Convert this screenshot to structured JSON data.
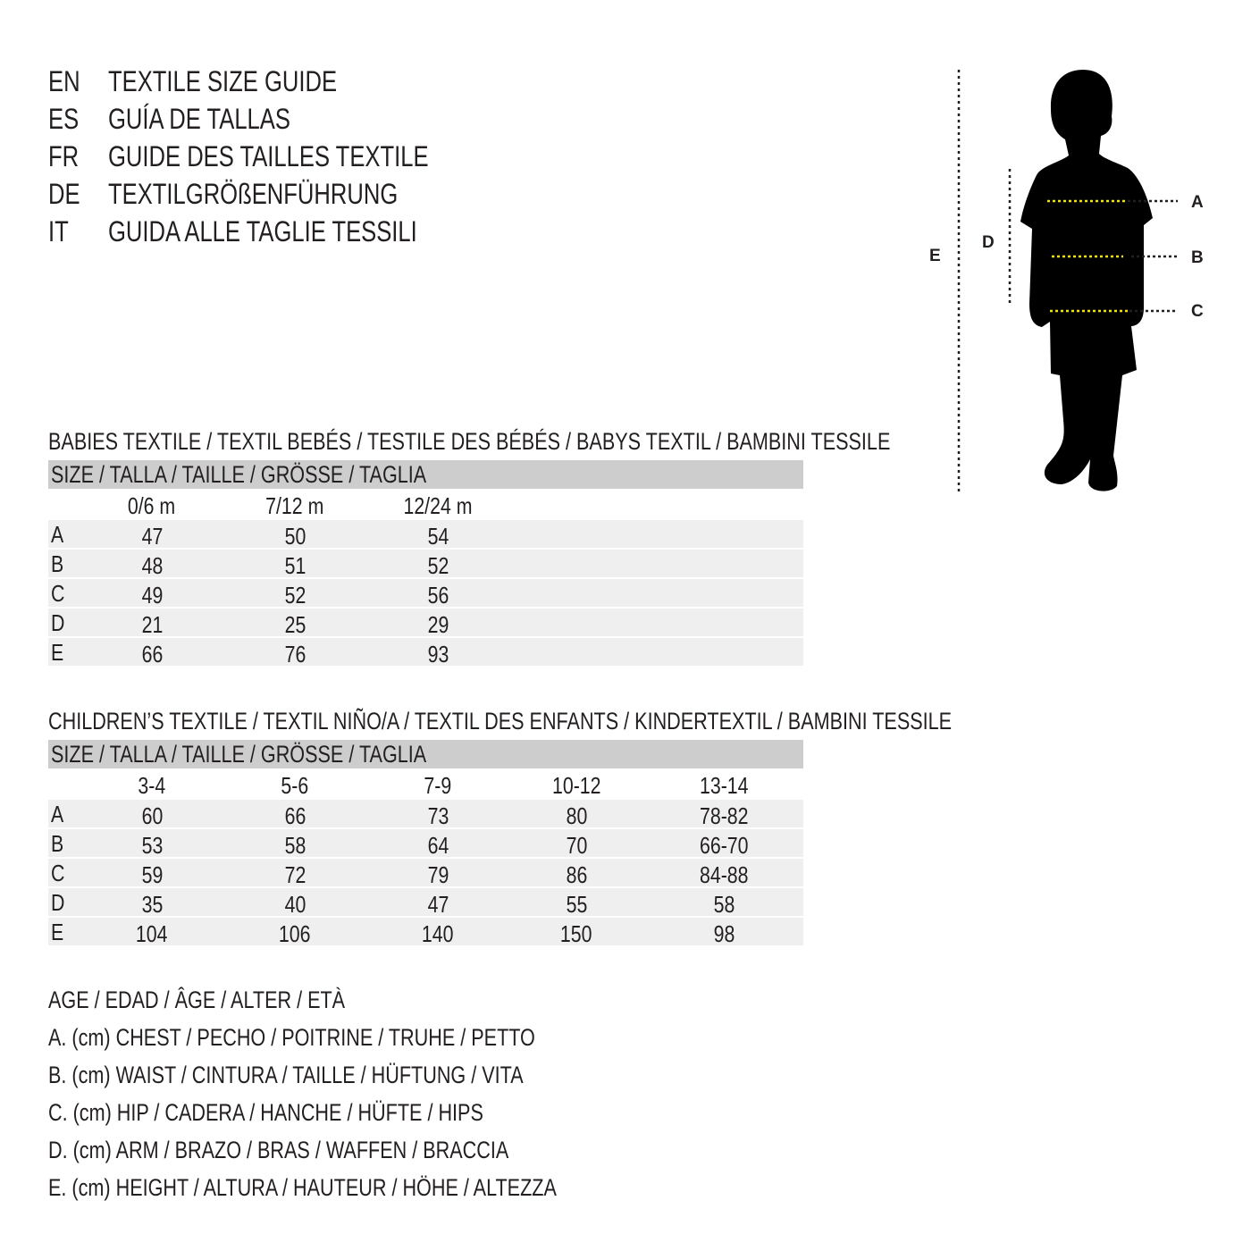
{
  "titles": [
    {
      "code": "EN",
      "text": "TEXTILE SIZE GUIDE"
    },
    {
      "code": "ES",
      "text": "GUÍA DE TALLAS"
    },
    {
      "code": "FR",
      "text": "GUIDE DES TAILLES TEXTILE"
    },
    {
      "code": "DE",
      "text": "TEXTILGRÖßENFÜHRUNG"
    },
    {
      "code": "IT",
      "text": "GUIDA ALLE TAGLIE TESSILI"
    }
  ],
  "figure": {
    "labels": {
      "A": "A",
      "B": "B",
      "C": "C",
      "D": "D",
      "E": "E"
    },
    "silhouette_color": "#000000",
    "measure_line_color": "#f2e600"
  },
  "babies": {
    "heading": "BABIES TEXTILE / TEXTIL BEBÉS / TESTILE DES BÉBÉS / BABYS TEXTIL / BAMBINI TESSILE",
    "size_header": "SIZE / TALLA / TAILLE / GRÖSSE / TAGLIA",
    "columns": [
      "0/6 m",
      "7/12 m",
      "12/24 m"
    ],
    "rows": [
      {
        "label": "A",
        "values": [
          "47",
          "50",
          "54"
        ]
      },
      {
        "label": "B",
        "values": [
          "48",
          "51",
          "52"
        ]
      },
      {
        "label": "C",
        "values": [
          "49",
          "52",
          "56"
        ]
      },
      {
        "label": "D",
        "values": [
          "21",
          "25",
          "29"
        ]
      },
      {
        "label": "E",
        "values": [
          "66",
          "76",
          "93"
        ]
      }
    ]
  },
  "children": {
    "heading": "CHILDREN’S TEXTILE / TEXTIL NIÑO/A / TEXTIL DES ENFANTS / KINDERTEXTIL / BAMBINI TESSILE",
    "size_header": "SIZE / TALLA / TAILLE / GRÖSSE / TAGLIA",
    "columns": [
      "3-4",
      "5-6",
      "7-9",
      "10-12",
      "13-14"
    ],
    "rows": [
      {
        "label": "A",
        "values": [
          "60",
          "66",
          "73",
          "80",
          "78-82"
        ]
      },
      {
        "label": "B",
        "values": [
          "53",
          "58",
          "64",
          "70",
          "66-70"
        ]
      },
      {
        "label": "C",
        "values": [
          "59",
          "72",
          "79",
          "86",
          "84-88"
        ]
      },
      {
        "label": "D",
        "values": [
          "35",
          "40",
          "47",
          "55",
          "58"
        ]
      },
      {
        "label": "E",
        "values": [
          "104",
          "106",
          "140",
          "150",
          "98"
        ]
      }
    ]
  },
  "legend": [
    "AGE / EDAD / ÂGE / ALTER / ETÀ",
    "A. (cm) CHEST / PECHO / POITRINE / TRUHE / PETTO",
    "B. (cm) WAIST / CINTURA / TAILLE / HÜFTUNG / VITA",
    "C. (cm) HIP / CADERA / HANCHE / HÜFTE / HIPS",
    "D. (cm) ARM / BRAZO / BRAS / WAFFEN / BRACCIA",
    "E. (cm) HEIGHT / ALTURA / HAUTEUR / HÖHE / ALTEZZA"
  ]
}
